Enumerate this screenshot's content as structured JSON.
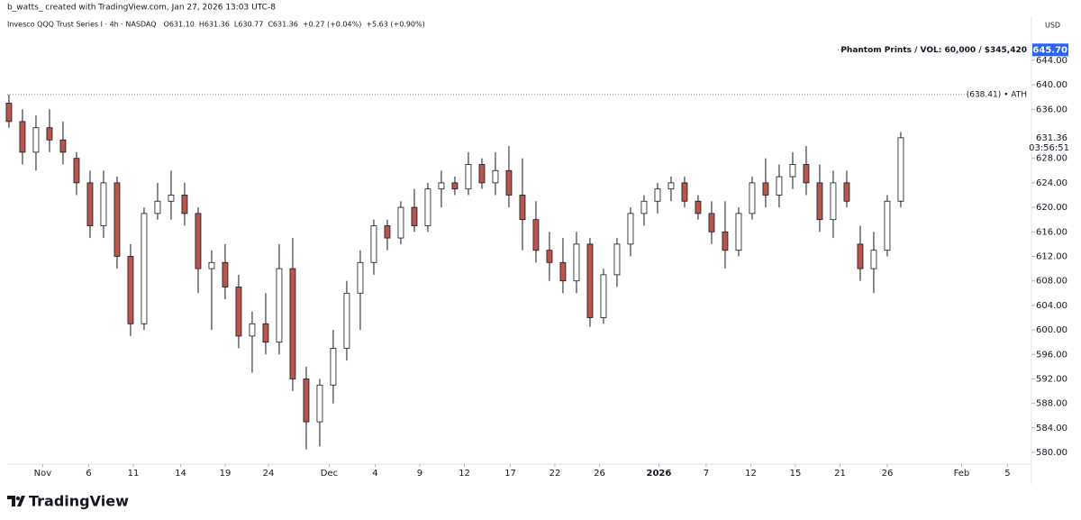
{
  "header": {
    "credit": "b_watts_ created with TradingView.com, Jan 27, 2026 13:03 UTC-8"
  },
  "footer": {
    "brand": "TradingView"
  },
  "chart_data": {
    "type": "candlestick",
    "legend": {
      "name": "Invesco QQQ Trust Series I · 4h · NASDAQ",
      "items": [
        "O631.10",
        "H631.36",
        "L630.77",
        "C631.36",
        "+0.27 (+0.04%)",
        "+5.63 (+0.90%)"
      ]
    },
    "currency": "USD",
    "up_color": "#ffffff",
    "down_color": "#b9564a",
    "x": [
      0,
      1,
      2,
      3,
      4,
      5,
      6,
      7,
      8,
      9,
      10,
      11,
      12,
      13,
      14,
      15,
      16,
      17,
      18,
      19,
      20,
      21,
      22,
      23,
      24,
      25,
      26,
      27,
      28,
      29,
      30,
      31,
      32,
      33,
      34,
      35,
      36,
      37,
      38,
      39,
      40,
      41,
      42,
      43,
      44,
      45,
      46,
      47,
      48,
      49,
      50,
      51,
      52,
      53,
      54,
      55,
      56,
      57,
      58,
      59,
      60,
      61,
      62,
      63,
      64,
      65,
      66
    ],
    "open": [
      637,
      634,
      629,
      633,
      631,
      628,
      624,
      617,
      624,
      612,
      601,
      619,
      621,
      622,
      619,
      610,
      611,
      607,
      599,
      601,
      598,
      610,
      592,
      585,
      591,
      597,
      606,
      611,
      617,
      615,
      620,
      617,
      623,
      624,
      623,
      627,
      624,
      626,
      622,
      618,
      613,
      611,
      608,
      614,
      602,
      609,
      614,
      619,
      621,
      623,
      624,
      621,
      619,
      616,
      613,
      619,
      624,
      622,
      625,
      627,
      624,
      618,
      624,
      614,
      610,
      613,
      621
    ],
    "high": [
      638.4,
      636,
      635,
      636,
      634,
      629,
      626,
      626,
      625,
      614,
      620,
      624,
      626,
      624,
      620,
      613,
      614,
      609,
      603,
      606,
      614,
      615,
      594,
      592,
      600,
      608,
      613,
      618,
      618,
      621,
      623,
      624,
      626,
      625,
      629,
      628,
      629,
      630,
      628,
      621,
      616,
      615,
      616,
      615,
      610,
      615,
      620,
      622,
      624,
      625,
      625,
      622,
      621,
      621,
      620,
      625,
      628,
      627,
      629,
      630,
      627,
      626,
      626,
      617,
      616,
      622,
      632.3
    ],
    "low": [
      633,
      627,
      626,
      629,
      627,
      622,
      615,
      615,
      610,
      599,
      600,
      618,
      618,
      617,
      606,
      600,
      605,
      597,
      593,
      596,
      596,
      590,
      580.5,
      581,
      588,
      595,
      600,
      609,
      613,
      614,
      616,
      616,
      620,
      622,
      622,
      623,
      622,
      620,
      613,
      611,
      608,
      606,
      606,
      600.5,
      601,
      607,
      612,
      617,
      619,
      621,
      620,
      618,
      614,
      610,
      612,
      618,
      620,
      620,
      623,
      622,
      616,
      615,
      620,
      608,
      606,
      612,
      620
    ],
    "close": [
      634,
      629,
      633,
      631,
      629,
      624,
      617,
      624,
      612,
      601,
      619,
      621,
      622,
      619,
      610,
      611,
      607,
      599,
      601,
      598,
      610,
      592,
      585,
      591,
      597,
      606,
      611,
      617,
      615,
      620,
      617,
      623,
      624,
      623,
      627,
      624,
      626,
      622,
      618,
      613,
      611,
      608,
      614,
      602,
      609,
      614,
      619,
      621,
      623,
      624,
      621,
      619,
      616,
      613,
      619,
      624,
      622,
      625,
      627,
      624,
      618,
      624,
      621,
      610,
      613,
      621,
      631.36
    ],
    "xlim": [
      -0.13,
      75.67
    ],
    "xticks": [
      {
        "value": 2.5,
        "label": "Nov"
      },
      {
        "value": 5.9,
        "label": "6"
      },
      {
        "value": 9.2,
        "label": "11"
      },
      {
        "value": 12.7,
        "label": "14"
      },
      {
        "value": 16,
        "label": "19"
      },
      {
        "value": 19.2,
        "label": "24"
      },
      {
        "value": 23.7,
        "label": "Dec"
      },
      {
        "value": 27.1,
        "label": "4"
      },
      {
        "value": 30.4,
        "label": "9"
      },
      {
        "value": 33.7,
        "label": "12"
      },
      {
        "value": 37.1,
        "label": "17"
      },
      {
        "value": 40.4,
        "label": "22"
      },
      {
        "value": 43.7,
        "label": "26"
      },
      {
        "value": 48.1,
        "label": "2026"
      },
      {
        "value": 51.6,
        "label": "7"
      },
      {
        "value": 54.9,
        "label": "12"
      },
      {
        "value": 58.2,
        "label": "15"
      },
      {
        "value": 61.5,
        "label": "21"
      },
      {
        "value": 65,
        "label": "26"
      },
      {
        "value": 70.5,
        "label": "Feb"
      },
      {
        "value": 73.9,
        "label": "5"
      }
    ],
    "ylim": [
      578.1,
      650.6
    ],
    "yticks": [
      {
        "value": 580,
        "label": "580.00"
      },
      {
        "value": 584,
        "label": "584.00"
      },
      {
        "value": 588,
        "label": "588.00"
      },
      {
        "value": 592,
        "label": "592.00"
      },
      {
        "value": 596,
        "label": "596.00"
      },
      {
        "value": 600,
        "label": "600.00"
      },
      {
        "value": 604,
        "label": "604.00"
      },
      {
        "value": 608,
        "label": "608.00"
      },
      {
        "value": 612,
        "label": "612.00"
      },
      {
        "value": 616,
        "label": "616.00"
      },
      {
        "value": 620,
        "label": "620.00"
      },
      {
        "value": 624,
        "label": "624.00"
      },
      {
        "value": 628,
        "label": "628.00"
      },
      {
        "value": 636,
        "label": "636.00"
      },
      {
        "value": 640,
        "label": "640.00"
      },
      {
        "value": 644,
        "label": "644.00"
      }
    ],
    "grid": false,
    "ath": {
      "value": 638.41,
      "label": "(638.41) • ATH"
    },
    "phantom": {
      "value": 645.7,
      "label": "645.70",
      "text": "Phantom Prints / VOL: 60,000 / $345,420",
      "color": "#2962ff"
    },
    "last_price": {
      "value": 631.36,
      "label": "631.36",
      "countdown": "03:56:51"
    }
  }
}
